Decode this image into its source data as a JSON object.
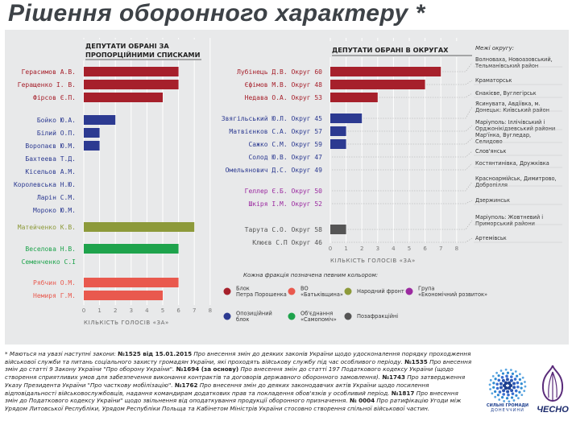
{
  "title": "Рішення оборонного характеру *",
  "colors": {
    "bpp": "#a6202b",
    "batkivshchyna": "#e9594e",
    "narodnyi_front": "#8d9a3a",
    "ekonom_rozvytok": "#9b2aa0",
    "opozytsiinyi": "#2c3a91",
    "samopomich": "#1ea34c",
    "pozafraktsiini": "#555555"
  },
  "chart_data": [
    {
      "type": "bar",
      "orientation": "horizontal",
      "title": "ДЕПУТАТИ ОБРАНІ ЗА ПРОПОРЦІЙНИМИ СПИСКАМИ",
      "xlabel": "КІЛЬКІСТЬ ГОЛОСІВ «ЗА»",
      "xlim": [
        0,
        8
      ],
      "xticks": [
        "0",
        "1",
        "2",
        "3",
        "4",
        "5",
        "6",
        "7",
        "8"
      ],
      "grid": true,
      "items": [
        {
          "name": "Герасимов А.В.",
          "value": 6,
          "faction": "bpp"
        },
        {
          "name": "Геращенко І. В.",
          "value": 6,
          "faction": "bpp"
        },
        {
          "name": "Фірсов Є.П.",
          "value": 5,
          "faction": "bpp"
        },
        {
          "name": "Бойко Ю.А.",
          "value": 2,
          "faction": "opozytsiinyi"
        },
        {
          "name": "Білий О.П.",
          "value": 1,
          "faction": "opozytsiinyi"
        },
        {
          "name": "Воропаєв Ю.М.",
          "value": 1,
          "faction": "opozytsiinyi"
        },
        {
          "name": "Бахтеева Т.Д.",
          "value": 0,
          "faction": "opozytsiinyi"
        },
        {
          "name": "Кісельов А.М.",
          "value": 0,
          "faction": "opozytsiinyi"
        },
        {
          "name": "Королевська Н.Ю.",
          "value": 0,
          "faction": "opozytsiinyi"
        },
        {
          "name": "Ларін С.М.",
          "value": 0,
          "faction": "opozytsiinyi"
        },
        {
          "name": "Мороко Ю.М.",
          "value": 0,
          "faction": "opozytsiinyi"
        },
        {
          "name": "Матейченко К.В.",
          "value": 7,
          "faction": "narodnyi_front"
        },
        {
          "name": "Веселова Н.В.",
          "value": 6,
          "faction": "samopomich"
        },
        {
          "name": "Семенченко С.І",
          "value": 0,
          "faction": "samopomich"
        },
        {
          "name": "Рябчин О.М.",
          "value": 6,
          "faction": "batkivshchyna"
        },
        {
          "name": "Немиря Г.М.",
          "value": 5,
          "faction": "batkivshchyna"
        }
      ]
    },
    {
      "type": "bar",
      "orientation": "horizontal",
      "title": "ДЕПУТАТИ ОБРАНІ В ОКРУГАХ",
      "xlabel": "КІЛЬКІСТЬ ГОЛОСІВ «ЗА»",
      "xlim": [
        0,
        8
      ],
      "xticks": [
        "0",
        "1",
        "2",
        "3",
        "4",
        "5",
        "6",
        "7",
        "8"
      ],
      "grid": true,
      "district_header": "Межі округу:",
      "items": [
        {
          "name": "Лубінець Д.В. Округ 60",
          "value": 7,
          "faction": "bpp",
          "district": "Волноваха, Новоазовський, Тельманівський район"
        },
        {
          "name": "Єфімов М.В. Округ 48",
          "value": 6,
          "faction": "bpp",
          "district": "Краматорськ"
        },
        {
          "name": "Недава О.А. Округ 53",
          "value": 3,
          "faction": "bpp",
          "district": "Єнакієве, Вуглегірськ"
        },
        {
          "name": "Звягільський Ю.Л. Округ 45",
          "value": 2,
          "faction": "opozytsiinyi",
          "district": "Ясинувата, Авдіївка, м. Донецьк: Київський район"
        },
        {
          "name": "Матвієнков С.А. Округ 57",
          "value": 1,
          "faction": "opozytsiinyi",
          "district": "Маріуполь: Іллічівський і Орджонікідзевський райони"
        },
        {
          "name": "Сажко С.М. Округ 59",
          "value": 1,
          "faction": "opozytsiinyi",
          "district": "Мар'їнка, Вугледар, Селидово"
        },
        {
          "name": "Солод Ю.В. Округ 47",
          "value": 0,
          "faction": "opozytsiinyi",
          "district": "Слов'янськ"
        },
        {
          "name": "Омельянович Д.С. Округ 49",
          "value": 0,
          "faction": "opozytsiinyi",
          "district": "Костянтинівка, Дружківка"
        },
        {
          "name": "Геллер Є.Б. Округ 50",
          "value": 0,
          "faction": "ekonom_rozvytok",
          "district": "Красноармійськ, Димитрово, Добропілля"
        },
        {
          "name": "Шкіря І.М. Округ 52",
          "value": 0,
          "faction": "ekonom_rozvytok",
          "district": "Дзержинськ"
        },
        {
          "name": "Тарута С.О. Округ 58",
          "value": 1,
          "faction": "pozafraktsiini",
          "district": "Маріуполь: Жовтневий і Приморський райони"
        },
        {
          "name": "Клюєв С.П Округ 46",
          "value": 0,
          "faction": "pozafraktsiini",
          "district": "Артемівськ"
        }
      ]
    }
  ],
  "legend": {
    "heading": "Кожна фракція позначена певним кольором:",
    "items": [
      {
        "label": "Блок Петра Порошенка",
        "color": "#a6202b"
      },
      {
        "label": "ВО «Батьківщина»",
        "color": "#e9594e"
      },
      {
        "label": "Народний фронт",
        "color": "#8d9a3a"
      },
      {
        "label": "Група «Економічний розвиток»",
        "color": "#9b2aa0"
      },
      {
        "label": "Опозиційний блок",
        "color": "#2c3a91"
      },
      {
        "label": "Об'єднання «Самопоміч»",
        "color": "#1ea34c"
      },
      {
        "label": "Позафракційні",
        "color": "#555555"
      }
    ]
  },
  "footnote": [
    [
      "* Маються на увазі наступні закони: ",
      "i"
    ],
    [
      "№1525 від 15.01.2015",
      "b"
    ],
    [
      " Про внесення змін до деяких законів України щодо удосконалення порядку проходження військової служби та питань соціального захисту громадян України, які проходять військову службу під час особливого періоду. ",
      "i"
    ],
    [
      "№1535",
      "b"
    ],
    [
      " Про внесення змін до статті 9 Закону України \"Про оборону України\". ",
      "i"
    ],
    [
      "№1694 (за основу)",
      "b"
    ],
    [
      " Про внесення змін до статті 197 Податкового кодексу України (щодо створення сприятливих умов для забезпечення виконання контрактів та договорів державного оборонного замовлення). ",
      "i"
    ],
    [
      "№1743",
      "b"
    ],
    [
      " Про затвердження Указу Президента України \"Про часткову мобілізацію\". ",
      "i"
    ],
    [
      "№1762",
      "b"
    ],
    [
      " Про внесення змін до деяких законодавчих актів України щодо посилення відповідальності військовослужбовців, надання командирам додаткових прав та покладення обов'язків у особливий період. ",
      "i"
    ],
    [
      "№1817",
      "b"
    ],
    [
      " Про внесення змін до Податкового кодексу України\" щодо звільнення від оподаткування продукції оборонного призначення. ",
      "i"
    ],
    [
      "№ 0004",
      "b"
    ],
    [
      " Про ратифікацію Угоди між Урядом Литовської Республіки, Урядом Республіки Польща та Кабінетом Міністрів України стосовно створення спільної військової частин.",
      "i"
    ]
  ],
  "logos": {
    "left": "СИЛЬНІ ГРОМАДИ ДОНЕЧЧИНИ",
    "right": "ЧЕСНО"
  }
}
